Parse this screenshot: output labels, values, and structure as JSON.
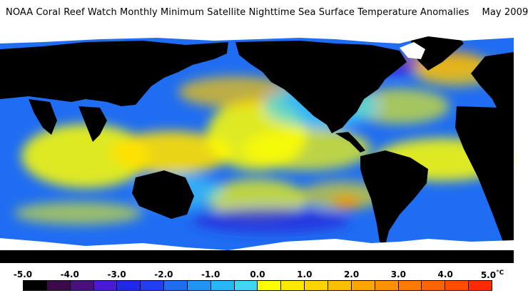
{
  "title": {
    "main": "NOAA Coral Reef Watch Monthly Minimum Satellite Nighttime Sea Surface Temperature Anomalies",
    "date": "May 2009"
  },
  "colorbar": {
    "unit": "°C",
    "tick_labels": [
      "-5.0",
      "-4.0",
      "-3.0",
      "-2.0",
      "-1.0",
      "0.0",
      "1.0",
      "2.0",
      "3.0",
      "4.0",
      "5.0"
    ],
    "colors": [
      "#000000",
      "#3a0a4a",
      "#4a1080",
      "#4a1ad8",
      "#1e2ae6",
      "#1f3ff0",
      "#1f6df2",
      "#1f96f5",
      "#27b7f6",
      "#3fd6f8",
      "#ffff00",
      "#ffe800",
      "#ffd200",
      "#ffbd00",
      "#ffa700",
      "#ff9000",
      "#ff7a00",
      "#ff6400",
      "#ff4d00",
      "#ff2a00"
    ]
  },
  "map": {
    "legend_colors": {
      "land": "#000000",
      "ice": "#ffffff",
      "ocean_base": "#1f6df2",
      "warm": "#ffff00",
      "hot": "#ff7a00",
      "cold": "#2a2ad8"
    }
  }
}
